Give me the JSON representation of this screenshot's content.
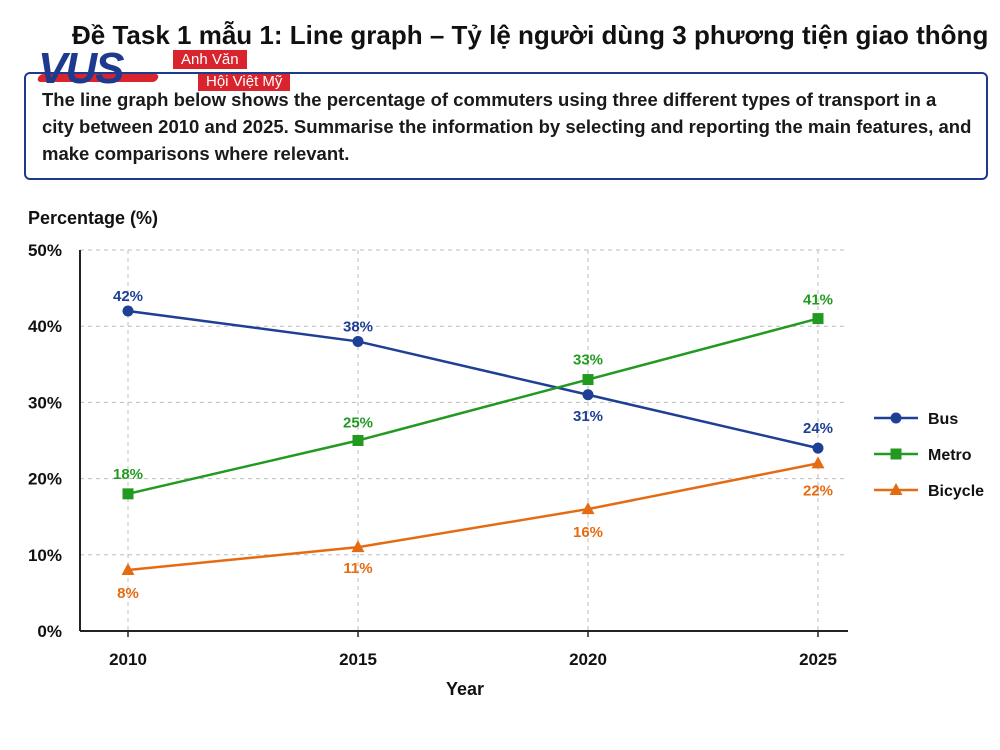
{
  "header": {
    "title": "Đề Task 1 mẫu 1: Line graph – Tỷ lệ người dùng 3 phương tiện giao thông"
  },
  "logo": {
    "mark": "VUS",
    "tag_line_1": "Anh Văn",
    "tag_line_2": "Hội Việt Mỹ"
  },
  "prompt": {
    "text": "The line graph below shows the percentage of commuters using three different types of transport in a city between 2010 and 2025. Summarise the information by selecting and reporting the main features, and make comparisons where relevant."
  },
  "chart_data": {
    "type": "line",
    "title": "",
    "xlabel": "Year",
    "ylabel": "Percentage (%)",
    "categories": [
      "2010",
      "2015",
      "2020",
      "2025"
    ],
    "ylim": [
      0,
      50
    ],
    "yticks": [
      "0%",
      "10%",
      "20%",
      "30%",
      "40%",
      "50%"
    ],
    "grid": true,
    "legend_position": "right",
    "series": [
      {
        "name": "Bus",
        "values": [
          42,
          38,
          31,
          24
        ],
        "labels": [
          "42%",
          "38%",
          "31%",
          "24%"
        ],
        "color": "#1f3f94",
        "marker": "circle"
      },
      {
        "name": "Metro",
        "values": [
          18,
          25,
          33,
          41
        ],
        "labels": [
          "18%",
          "25%",
          "33%",
          "41%"
        ],
        "color": "#229a22",
        "marker": "square"
      },
      {
        "name": "Bicycle",
        "values": [
          8,
          11,
          16,
          22
        ],
        "labels": [
          "8%",
          "11%",
          "16%",
          "22%"
        ],
        "color": "#e56b12",
        "marker": "triangle"
      }
    ]
  }
}
